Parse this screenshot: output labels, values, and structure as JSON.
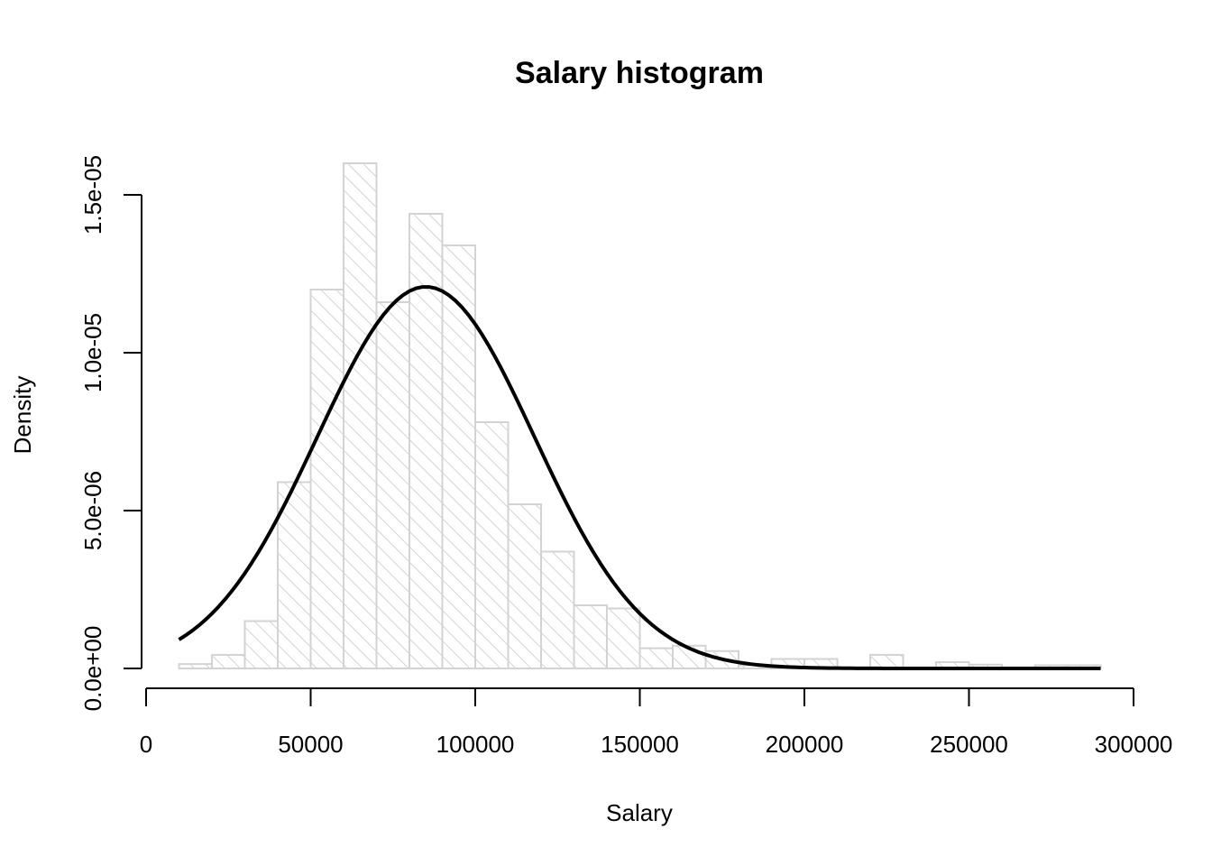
{
  "chart_data": {
    "type": "bar",
    "title": "Salary histogram",
    "xlabel": "Salary",
    "ylabel": "Density",
    "xlim": [
      0,
      300000
    ],
    "ylim": [
      0,
      1.5e-05
    ],
    "x_ticks": [
      0,
      50000,
      100000,
      150000,
      200000,
      250000,
      300000
    ],
    "x_tick_labels": [
      "0",
      "50000",
      "100000",
      "150000",
      "200000",
      "250000",
      "300000"
    ],
    "y_ticks": [
      0,
      5e-06,
      1e-05,
      1.5e-05
    ],
    "y_tick_labels": [
      "0.0e+00",
      "5.0e-06",
      "1.0e-05",
      "1.5e-05"
    ],
    "bin_width": 10000,
    "bins": [
      {
        "start": 10000,
        "end": 20000,
        "density": 1.4e-07
      },
      {
        "start": 20000,
        "end": 30000,
        "density": 4.3e-07
      },
      {
        "start": 30000,
        "end": 40000,
        "density": 1.5e-06
      },
      {
        "start": 40000,
        "end": 50000,
        "density": 5.9e-06
      },
      {
        "start": 50000,
        "end": 60000,
        "density": 1.2e-05
      },
      {
        "start": 60000,
        "end": 70000,
        "density": 1.6e-05
      },
      {
        "start": 70000,
        "end": 80000,
        "density": 1.16e-05
      },
      {
        "start": 80000,
        "end": 90000,
        "density": 1.44e-05
      },
      {
        "start": 90000,
        "end": 100000,
        "density": 1.34e-05
      },
      {
        "start": 100000,
        "end": 110000,
        "density": 7.8e-06
      },
      {
        "start": 110000,
        "end": 120000,
        "density": 5.2e-06
      },
      {
        "start": 120000,
        "end": 130000,
        "density": 3.7e-06
      },
      {
        "start": 130000,
        "end": 140000,
        "density": 2e-06
      },
      {
        "start": 140000,
        "end": 150000,
        "density": 1.9e-06
      },
      {
        "start": 150000,
        "end": 160000,
        "density": 6.4e-07
      },
      {
        "start": 160000,
        "end": 170000,
        "density": 7.2e-07
      },
      {
        "start": 170000,
        "end": 180000,
        "density": 5.5e-07
      },
      {
        "start": 180000,
        "end": 190000,
        "density": 1e-07
      },
      {
        "start": 190000,
        "end": 200000,
        "density": 3e-07
      },
      {
        "start": 200000,
        "end": 210000,
        "density": 3e-07
      },
      {
        "start": 210000,
        "end": 220000,
        "density": 0
      },
      {
        "start": 220000,
        "end": 230000,
        "density": 4.3e-07
      },
      {
        "start": 230000,
        "end": 240000,
        "density": 0
      },
      {
        "start": 240000,
        "end": 250000,
        "density": 2e-07
      },
      {
        "start": 250000,
        "end": 260000,
        "density": 1.2e-07
      },
      {
        "start": 260000,
        "end": 270000,
        "density": 0
      },
      {
        "start": 270000,
        "end": 280000,
        "density": 1e-07
      },
      {
        "start": 280000,
        "end": 290000,
        "density": 1e-07
      }
    ],
    "density_curve": {
      "mean": 85000,
      "sd": 33000,
      "x_range": [
        10000,
        290000
      ]
    },
    "grid": false,
    "legend": "none",
    "colors": {
      "bar_border": "#d3d3d3",
      "bar_hatch": "#d3d3d3",
      "curve": "#000000",
      "axis": "#000000"
    }
  }
}
